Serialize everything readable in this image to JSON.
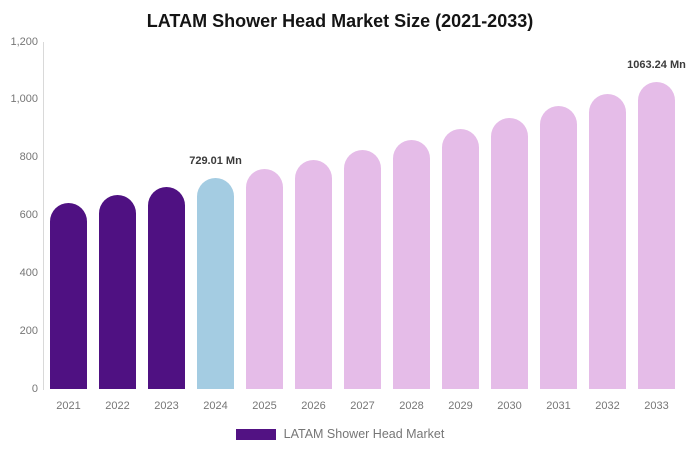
{
  "header": {
    "title": "LATAM Shower Head Market Size (2021-2033)"
  },
  "legend": {
    "label": "LATAM Shower Head Market",
    "swatch_color": "#521283"
  },
  "colors": {
    "historical_bar": "#4f1182",
    "current_year_bar": "#a4cce2",
    "forecast_bar": "#e5bce8",
    "axis_text": "#767676",
    "annotation_text": "#3b3b3b",
    "axis_line": "#d9d9d9",
    "title_text": "#141414"
  },
  "chart_data": {
    "type": "bar",
    "title": "LATAM Shower Head Market Size (2021-2033)",
    "unit": "Mn",
    "categories": [
      "2021",
      "2022",
      "2023",
      "2024",
      "2025",
      "2026",
      "2027",
      "2028",
      "2029",
      "2030",
      "2031",
      "2032",
      "2033"
    ],
    "values": [
      643,
      671,
      699,
      729.01,
      760,
      793,
      827,
      862,
      899,
      938,
      978,
      1019,
      1063.24
    ],
    "bar_roles": [
      "historical",
      "historical",
      "historical",
      "current_year",
      "forecast",
      "forecast",
      "forecast",
      "forecast",
      "forecast",
      "forecast",
      "forecast",
      "forecast",
      "forecast"
    ],
    "data_labels": [
      {
        "index": 3,
        "text": "729.01 Mn"
      },
      {
        "index": 12,
        "text": "1063.24 Mn"
      }
    ],
    "xlabel": "",
    "ylabel": "",
    "ylim": [
      0,
      1200
    ],
    "y_ticks": [
      "0",
      "200",
      "400",
      "600",
      "800",
      "1,000",
      "1,200"
    ],
    "grid": false,
    "legend_position": "bottom",
    "legend_entries": [
      "LATAM Shower Head Market"
    ]
  }
}
